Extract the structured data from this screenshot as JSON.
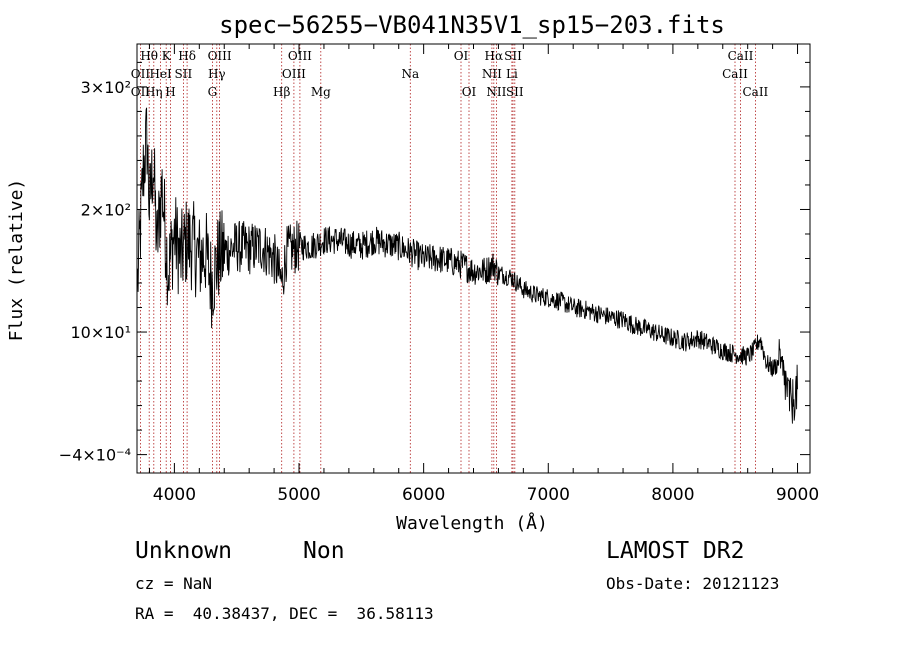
{
  "chart_data": {
    "type": "line",
    "title": "spec−56255−VB041N35V1_sp15−203.fits",
    "xlabel": "Wavelength (Å)",
    "ylabel": "Flux (relative)",
    "xlim": [
      3700,
      9100
    ],
    "ylim": [
      -15,
      335
    ],
    "grid": false,
    "x_ticks": [
      {
        "value": 4000,
        "label": "4000"
      },
      {
        "value": 5000,
        "label": "5000"
      },
      {
        "value": 6000,
        "label": "6000"
      },
      {
        "value": 7000,
        "label": "7000"
      },
      {
        "value": 8000,
        "label": "8000"
      },
      {
        "value": 9000,
        "label": "9000"
      }
    ],
    "y_ticks": [
      {
        "value": 0,
        "label": "−4×10⁻⁴"
      },
      {
        "value": 100,
        "label": "10×10¹"
      },
      {
        "value": 200,
        "label": "2×10²"
      },
      {
        "value": 300,
        "label": "3×10²"
      }
    ],
    "x_minor_step": 200,
    "y_minor_step": 20,
    "series": [
      {
        "x": [
          3705,
          3750,
          3780,
          3800,
          3830,
          3860,
          3900,
          3950,
          4000,
          4050,
          4100,
          4150,
          4200,
          4250,
          4300,
          4350,
          4400,
          4500,
          4600,
          4700,
          4800,
          4861,
          4900,
          5000,
          5100,
          5200,
          5300,
          5400,
          5500,
          5600,
          5700,
          5800,
          5900,
          6000,
          6100,
          6200,
          6300,
          6400,
          6500,
          6563,
          6600,
          6700,
          6800,
          6900,
          7000,
          7100,
          7200,
          7300,
          7400,
          7500,
          7600,
          7700,
          7800,
          7900,
          8000,
          8100,
          8200,
          8300,
          8400,
          8500,
          8600,
          8650,
          8700,
          8750,
          8800,
          8850,
          8900,
          8950,
          9000
        ],
        "y": [
          140,
          230,
          260,
          200,
          240,
          170,
          220,
          150,
          180,
          160,
          175,
          170,
          160,
          165,
          140,
          160,
          165,
          170,
          168,
          170,
          160,
          140,
          165,
          170,
          170,
          175,
          175,
          172,
          170,
          175,
          172,
          170,
          165,
          160,
          160,
          158,
          155,
          150,
          150,
          155,
          148,
          145,
          135,
          130,
          128,
          125,
          120,
          118,
          115,
          112,
          110,
          105,
          102,
          98,
          95,
          92,
          95,
          90,
          85,
          82,
          80,
          85,
          95,
          75,
          70,
          75,
          60,
          40,
          55
        ]
      }
    ],
    "line_marks": [
      {
        "label": "Hθ",
        "x": 3798,
        "row": 0
      },
      {
        "label": "K",
        "x": 3934,
        "row": 0
      },
      {
        "label": "Hδ",
        "x": 4102,
        "row": 0
      },
      {
        "label": "OIII",
        "x": 4363,
        "row": 0
      },
      {
        "label": "OIII",
        "x": 5007,
        "row": 0
      },
      {
        "label": "OI",
        "x": 6300,
        "row": 0
      },
      {
        "label": "Hα",
        "x": 6563,
        "row": 0
      },
      {
        "label": "SII",
        "x": 6717,
        "row": 0
      },
      {
        "label": "CaII",
        "x": 8542,
        "row": 0
      },
      {
        "label": "OII",
        "x": 3727,
        "row": 1
      },
      {
        "label": "HeI",
        "x": 3889,
        "row": 1
      },
      {
        "label": "SII",
        "x": 4072,
        "row": 1
      },
      {
        "label": "Hγ",
        "x": 4340,
        "row": 1
      },
      {
        "label": "OIII",
        "x": 4959,
        "row": 1
      },
      {
        "label": "Na",
        "x": 5893,
        "row": 1
      },
      {
        "label": "NII",
        "x": 6548,
        "row": 1
      },
      {
        "label": "Li",
        "x": 6708,
        "row": 1
      },
      {
        "label": "CaII",
        "x": 8498,
        "row": 1
      },
      {
        "label": "OII",
        "x": 3727,
        "row": 2
      },
      {
        "label": "Hη",
        "x": 3835,
        "row": 2
      },
      {
        "label": "H",
        "x": 3969,
        "row": 2
      },
      {
        "label": "G",
        "x": 4305,
        "row": 2
      },
      {
        "label": "Hβ",
        "x": 4861,
        "row": 2
      },
      {
        "label": "Mg",
        "x": 5175,
        "row": 2
      },
      {
        "label": "OI",
        "x": 6364,
        "row": 2
      },
      {
        "label": "NII",
        "x": 6584,
        "row": 2
      },
      {
        "label": "SII",
        "x": 6731,
        "row": 2
      },
      {
        "label": "CaII",
        "x": 8662,
        "row": 2
      }
    ],
    "line_mark_x": [
      3727,
      3798,
      3835,
      3889,
      3934,
      3969,
      4072,
      4102,
      4305,
      4340,
      4363,
      4861,
      4959,
      5007,
      5175,
      5893,
      6300,
      6364,
      6548,
      6563,
      6584,
      6708,
      6717,
      6731,
      8498,
      8542,
      8662
    ],
    "colors": {
      "spectrum": "#000000",
      "line_marks": "#b02020"
    }
  },
  "footer": {
    "object_class": "Unknown",
    "object_subclass": "Non",
    "survey": "LAMOST DR2",
    "redshift": "cz = NaN",
    "obs_date": "Obs-Date: 20121123",
    "coords": "RA =  40.38437, DEC =  36.58113"
  }
}
